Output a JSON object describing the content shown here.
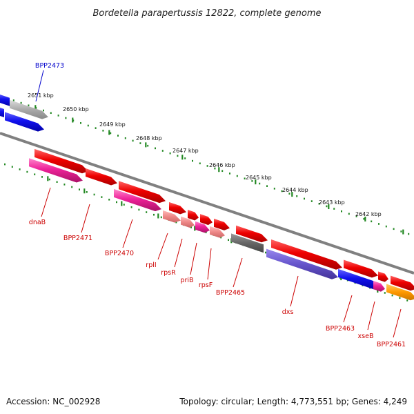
{
  "title": "Bordetella parapertussis 12822, complete genome",
  "footer": {
    "accession": "Accession: NC_002928",
    "summary": "Topology: circular; Length: 4,773,551 bp; Genes: 4,249"
  },
  "ruler_labels": [
    "2651 kbp",
    "2650 kbp",
    "2649 kbp",
    "2648 kbp",
    "2647 kbp",
    "2646 kbp",
    "2645 kbp",
    "2644 kbp",
    "2643 kbp",
    "2642 kbp"
  ],
  "gene_labels": [
    "BPP2473",
    "dnaB",
    "BPP2471",
    "BPP2470",
    "rplI",
    "rpsR",
    "priB",
    "rpsF",
    "BPP2465",
    "dxs",
    "BPP2463",
    "xseB",
    "BPP2461"
  ],
  "colors": {
    "blue_label": "#0000cc",
    "red_label": "#cc0000",
    "red_gene": "#ee0000",
    "pink_gene": "#ee2299",
    "blue_gene": "#1111ee",
    "grey_gene": "#999999",
    "dark_gene": "#666666",
    "violet_gene": "#6655cc",
    "orange_gene": "#ff9900",
    "ruler": "#228822",
    "backbone": "#808080"
  }
}
